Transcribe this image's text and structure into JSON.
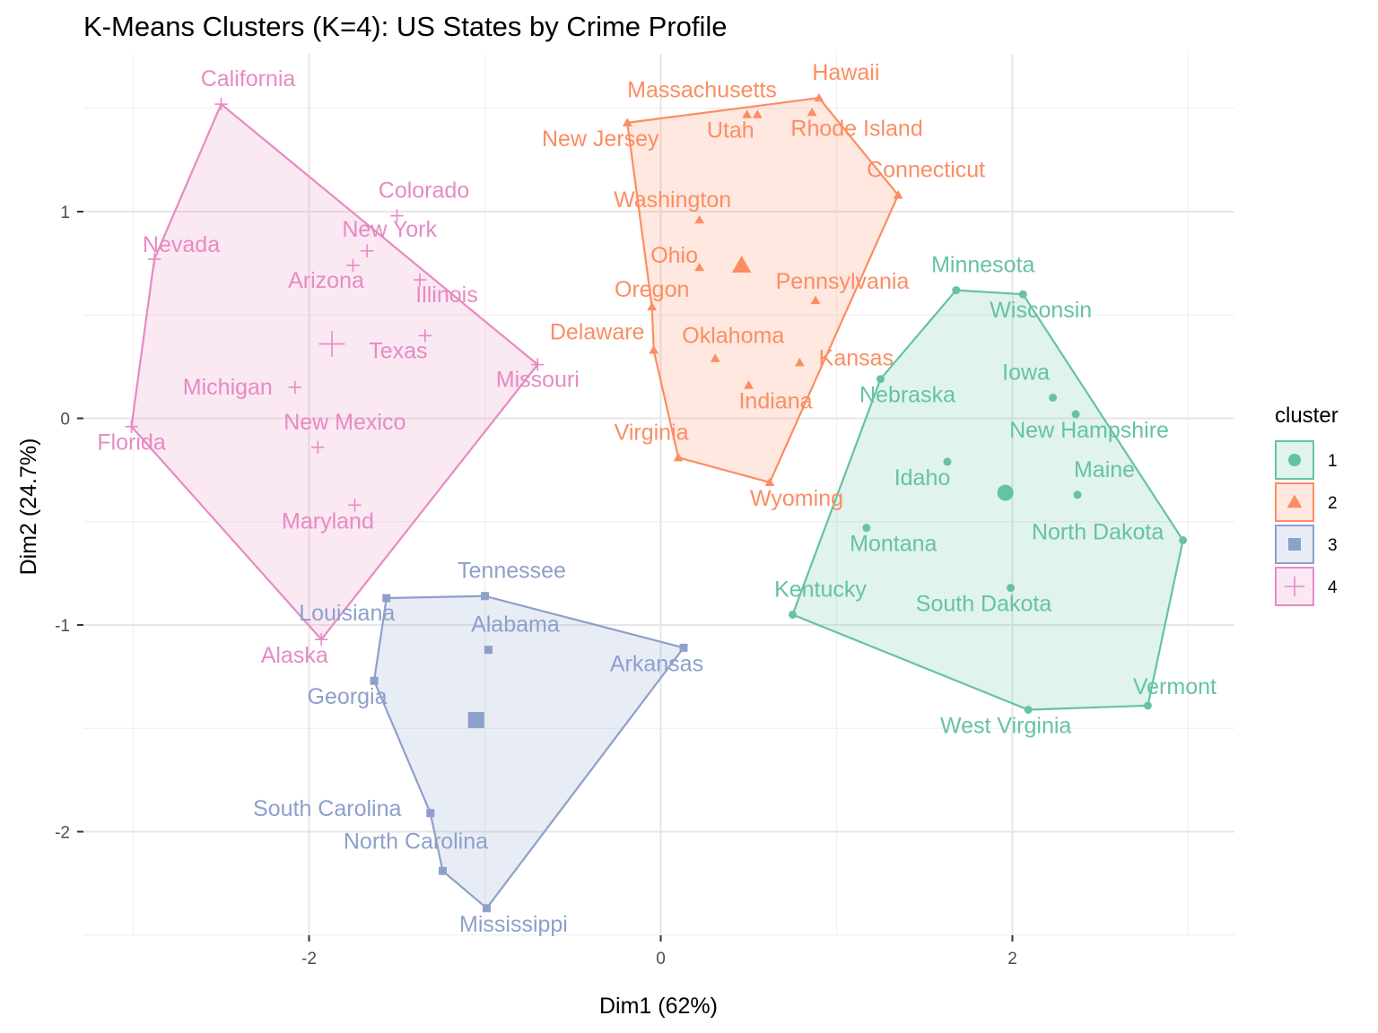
{
  "chart_data": {
    "type": "scatter",
    "title": "K-Means Clusters (K=4): US States by Crime Profile",
    "xlabel": "Dim1 (62%)",
    "ylabel": "Dim2 (24.7%)",
    "xlim": [
      -3.0,
      3.0
    ],
    "ylim": [
      -2.5,
      1.55
    ],
    "x_ticks": [
      -2,
      0,
      2
    ],
    "y_ticks": [
      -2,
      -1,
      0,
      1
    ],
    "x_tick_labels": [
      "-2",
      "0",
      "2"
    ],
    "y_tick_labels": [
      "-2",
      "-1",
      "0",
      "1"
    ],
    "grid": true,
    "legend_position": "right",
    "legend_title": "cluster",
    "colors": {
      "1": "#66c2a5",
      "2": "#fc8d62",
      "3": "#8da0cb",
      "4": "#e78ac3"
    },
    "clusters": [
      {
        "name": "1",
        "color": "#66c2a5",
        "shape": "circle",
        "center": [
          1.96,
          -0.36
        ],
        "hull": [
          "Minnesota",
          "Wisconsin",
          "North Dakota",
          "Vermont",
          "West Virginia",
          "Kentucky",
          "Nebraska"
        ],
        "points": [
          {
            "label": "Minnesota",
            "x": 1.68,
            "y": 0.62
          },
          {
            "label": "Wisconsin",
            "x": 2.06,
            "y": 0.6
          },
          {
            "label": "Iowa",
            "x": 2.23,
            "y": 0.1
          },
          {
            "label": "New Hampshire",
            "x": 2.36,
            "y": 0.02
          },
          {
            "label": "Nebraska",
            "x": 1.25,
            "y": 0.19
          },
          {
            "label": "Idaho",
            "x": 1.63,
            "y": -0.21
          },
          {
            "label": "Maine",
            "x": 2.37,
            "y": -0.37
          },
          {
            "label": "Montana",
            "x": 1.17,
            "y": -0.53
          },
          {
            "label": "North Dakota",
            "x": 2.97,
            "y": -0.59
          },
          {
            "label": "South Dakota",
            "x": 1.99,
            "y": -0.82
          },
          {
            "label": "Kentucky",
            "x": 0.75,
            "y": -0.95
          },
          {
            "label": "Vermont",
            "x": 2.77,
            "y": -1.39
          },
          {
            "label": "West Virginia",
            "x": 2.09,
            "y": -1.41
          }
        ]
      },
      {
        "name": "2",
        "color": "#fc8d62",
        "shape": "triangle",
        "center": [
          0.46,
          0.74
        ],
        "hull": [
          "New Jersey",
          "Hawaii",
          "Connecticut",
          "Wyoming",
          "Virginia",
          "Delaware",
          "Oregon"
        ],
        "points": [
          {
            "label": "Hawaii",
            "x": 0.9,
            "y": 1.55
          },
          {
            "label": "Massachusetts",
            "x": 0.49,
            "y": 1.47
          },
          {
            "label": "Utah",
            "x": 0.55,
            "y": 1.47
          },
          {
            "label": "Rhode Island",
            "x": 0.86,
            "y": 1.48
          },
          {
            "label": "New Jersey",
            "x": -0.19,
            "y": 1.43
          },
          {
            "label": "Connecticut",
            "x": 1.35,
            "y": 1.08
          },
          {
            "label": "Washington",
            "x": 0.22,
            "y": 0.96
          },
          {
            "label": "Ohio",
            "x": 0.22,
            "y": 0.73
          },
          {
            "label": "Pennsylvania",
            "x": 0.88,
            "y": 0.57
          },
          {
            "label": "Oregon",
            "x": -0.05,
            "y": 0.54
          },
          {
            "label": "Delaware",
            "x": -0.04,
            "y": 0.33
          },
          {
            "label": "Oklahoma",
            "x": 0.31,
            "y": 0.29
          },
          {
            "label": "Kansas",
            "x": 0.79,
            "y": 0.27
          },
          {
            "label": "Indiana",
            "x": 0.5,
            "y": 0.16
          },
          {
            "label": "Virginia",
            "x": 0.1,
            "y": -0.19
          },
          {
            "label": "Wyoming",
            "x": 0.62,
            "y": -0.31
          }
        ]
      },
      {
        "name": "3",
        "color": "#8da0cb",
        "shape": "square",
        "center": [
          -1.05,
          -1.46
        ],
        "hull": [
          "Louisiana",
          "Tennessee",
          "Arkansas",
          "Mississippi",
          "North Carolina",
          "South Carolina",
          "Georgia"
        ],
        "points": [
          {
            "label": "Tennessee",
            "x": -1.0,
            "y": -0.86
          },
          {
            "label": "Louisiana",
            "x": -1.56,
            "y": -0.87
          },
          {
            "label": "Alabama",
            "x": -0.98,
            "y": -1.12
          },
          {
            "label": "Arkansas",
            "x": 0.13,
            "y": -1.11
          },
          {
            "label": "Georgia",
            "x": -1.63,
            "y": -1.27
          },
          {
            "label": "South Carolina",
            "x": -1.31,
            "y": -1.91
          },
          {
            "label": "North Carolina",
            "x": -1.24,
            "y": -2.19
          },
          {
            "label": "Mississippi",
            "x": -0.99,
            "y": -2.37
          }
        ]
      },
      {
        "name": "4",
        "color": "#e78ac3",
        "shape": "cross",
        "center": [
          -1.87,
          0.36
        ],
        "hull": [
          "California",
          "Missouri",
          "Alaska",
          "Florida",
          "Nevada"
        ],
        "points": [
          {
            "label": "California",
            "x": -2.5,
            "y": 1.52
          },
          {
            "label": "Colorado",
            "x": -1.5,
            "y": 0.98
          },
          {
            "label": "Nevada",
            "x": -2.88,
            "y": 0.77
          },
          {
            "label": "New York",
            "x": -1.67,
            "y": 0.81
          },
          {
            "label": "Arizona",
            "x": -1.75,
            "y": 0.74
          },
          {
            "label": "Illinois",
            "x": -1.37,
            "y": 0.67
          },
          {
            "label": "Texas",
            "x": -1.34,
            "y": 0.4
          },
          {
            "label": "Missouri",
            "x": -0.7,
            "y": 0.26
          },
          {
            "label": "Michigan",
            "x": -2.08,
            "y": 0.15
          },
          {
            "label": "Florida",
            "x": -3.01,
            "y": -0.04
          },
          {
            "label": "New Mexico",
            "x": -1.95,
            "y": -0.14
          },
          {
            "label": "Maryland",
            "x": -1.74,
            "y": -0.42
          },
          {
            "label": "Alaska",
            "x": -1.93,
            "y": -1.07
          }
        ]
      }
    ]
  }
}
